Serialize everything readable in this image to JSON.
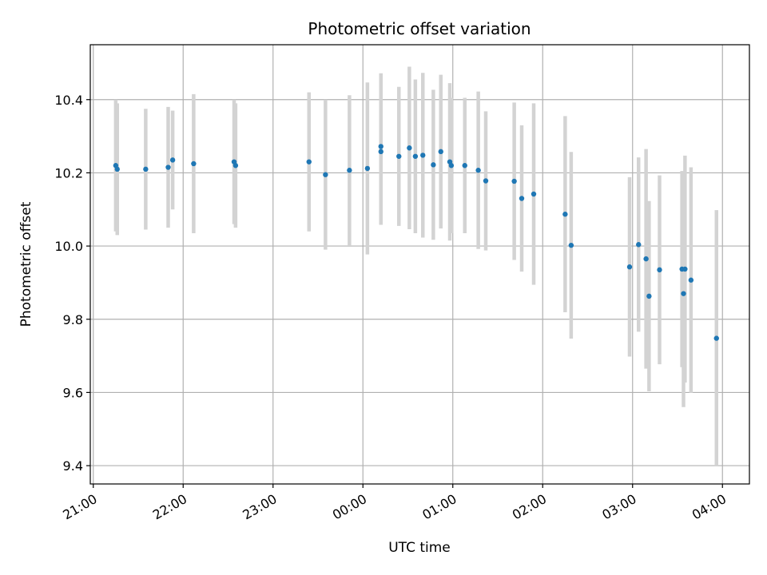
{
  "chart_data": {
    "type": "scatter",
    "title": "Photometric offset variation",
    "xlabel": "UTC time",
    "ylabel": "Photometric offset",
    "grid": true,
    "xlim": [
      "20:58",
      "04:18"
    ],
    "ylim": [
      9.35,
      10.55
    ],
    "x_ticks": [
      "21:00",
      "22:00",
      "23:00",
      "00:00",
      "01:00",
      "02:00",
      "03:00",
      "04:00"
    ],
    "y_ticks": [
      9.4,
      9.6,
      9.8,
      10.0,
      10.2,
      10.4
    ],
    "colors": {
      "point": "#1f77b4",
      "errorbar": "#d3d3d3",
      "grid": "#b0b0b0"
    },
    "points": [
      {
        "x": "21:15",
        "y": 10.22,
        "err": 0.18
      },
      {
        "x": "21:16",
        "y": 10.21,
        "err": 0.18
      },
      {
        "x": "21:35",
        "y": 10.21,
        "err": 0.165
      },
      {
        "x": "21:50",
        "y": 10.215,
        "err": 0.165
      },
      {
        "x": "21:53",
        "y": 10.235,
        "err": 0.135
      },
      {
        "x": "22:07",
        "y": 10.225,
        "err": 0.19
      },
      {
        "x": "22:34",
        "y": 10.23,
        "err": 0.17
      },
      {
        "x": "22:35",
        "y": 10.22,
        "err": 0.17
      },
      {
        "x": "23:24",
        "y": 10.23,
        "err": 0.19
      },
      {
        "x": "23:35",
        "y": 10.195,
        "err": 0.205
      },
      {
        "x": "23:51",
        "y": 10.207,
        "err": 0.205
      },
      {
        "x": "00:03",
        "y": 10.212,
        "err": 0.235
      },
      {
        "x": "00:12",
        "y": 10.272,
        "err": 0.2
      },
      {
        "x": "00:12",
        "y": 10.258,
        "err": 0.2
      },
      {
        "x": "00:24",
        "y": 10.245,
        "err": 0.19
      },
      {
        "x": "00:31",
        "y": 10.268,
        "err": 0.222
      },
      {
        "x": "00:35",
        "y": 10.245,
        "err": 0.21
      },
      {
        "x": "00:40",
        "y": 10.248,
        "err": 0.225
      },
      {
        "x": "00:47",
        "y": 10.222,
        "err": 0.205
      },
      {
        "x": "00:52",
        "y": 10.258,
        "err": 0.21
      },
      {
        "x": "00:58",
        "y": 10.23,
        "err": 0.215
      },
      {
        "x": "00:59",
        "y": 10.22,
        "err": 0.185
      },
      {
        "x": "01:08",
        "y": 10.22,
        "err": 0.185
      },
      {
        "x": "01:17",
        "y": 10.207,
        "err": 0.215
      },
      {
        "x": "01:22",
        "y": 10.178,
        "err": 0.19
      },
      {
        "x": "01:41",
        "y": 10.177,
        "err": 0.215
      },
      {
        "x": "01:46",
        "y": 10.13,
        "err": 0.2
      },
      {
        "x": "01:54",
        "y": 10.142,
        "err": 0.248
      },
      {
        "x": "02:15",
        "y": 10.087,
        "err": 0.268
      },
      {
        "x": "02:19",
        "y": 10.002,
        "err": 0.255
      },
      {
        "x": "02:58",
        "y": 9.943,
        "err": 0.245
      },
      {
        "x": "03:04",
        "y": 10.004,
        "err": 0.238
      },
      {
        "x": "03:09",
        "y": 9.965,
        "err": 0.3
      },
      {
        "x": "03:11",
        "y": 9.863,
        "err": 0.26
      },
      {
        "x": "03:18",
        "y": 9.935,
        "err": 0.258
      },
      {
        "x": "03:33",
        "y": 9.937,
        "err": 0.268
      },
      {
        "x": "03:34",
        "y": 9.87,
        "err": 0.31
      },
      {
        "x": "03:35",
        "y": 9.937,
        "err": 0.31
      },
      {
        "x": "03:39",
        "y": 9.907,
        "err": 0.308
      },
      {
        "x": "03:56",
        "y": 9.748,
        "err": 0.35
      }
    ]
  }
}
